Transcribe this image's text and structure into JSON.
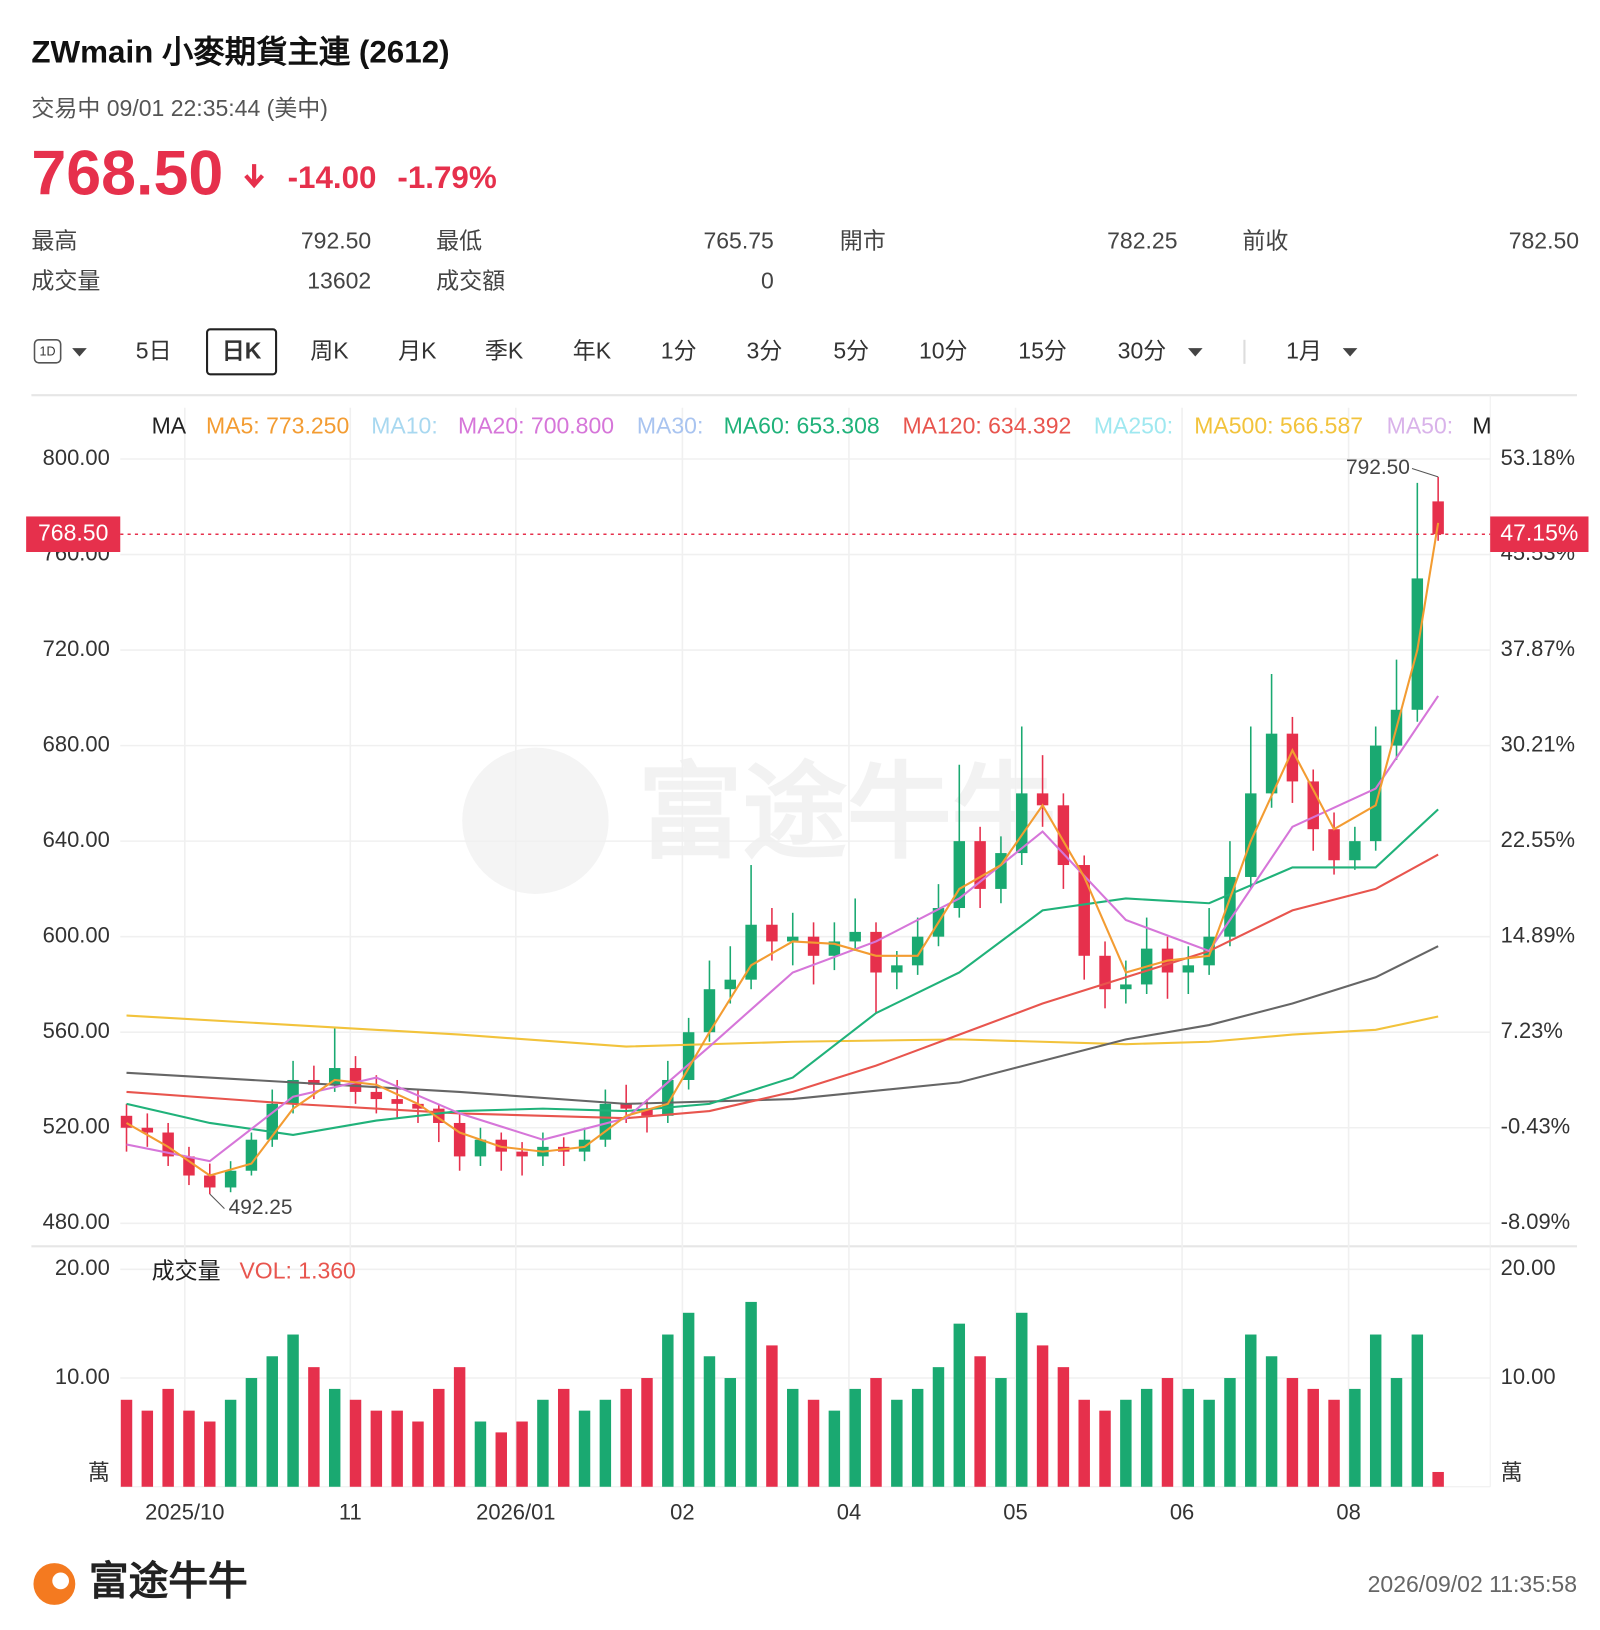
{
  "header": {
    "title": "ZWmain  小麥期貨主連 (2612)",
    "status": "交易中 09/01 22:35:44 (美中)",
    "price": "768.50",
    "change": "-14.00",
    "change_pct": "-1.79%"
  },
  "stats": [
    [
      {
        "label": "最高",
        "value": "792.50",
        "color": "#1aa971"
      },
      {
        "label": "最低",
        "value": "765.75",
        "color": "#e6304c"
      },
      {
        "label": "開市",
        "value": "782.25",
        "color": "#e6304c"
      },
      {
        "label": "前收",
        "value": "782.50",
        "color": "#555"
      }
    ],
    [
      {
        "label": "成交量",
        "value": "13602",
        "color": "#222"
      },
      {
        "label": "成交額",
        "value": "0",
        "color": "#222"
      }
    ]
  ],
  "tabs": [
    "5日",
    "日K",
    "周K",
    "月K",
    "季K",
    "年K",
    "1分",
    "3分",
    "5分",
    "10分",
    "15分",
    "30分",
    "1月"
  ],
  "tab_icon": "1D",
  "selected_tab": "日K",
  "chart_data": {
    "type": "candlestick",
    "legend": [
      {
        "label": "MA",
        "color": "#222"
      },
      {
        "label": "MA5: 773.250",
        "color": "#f39c32"
      },
      {
        "label": "MA10:",
        "color": "#a8d8f0"
      },
      {
        "label": "MA20: 700.800",
        "color": "#d676d9"
      },
      {
        "label": "MA30:",
        "color": "#a9c4f0"
      },
      {
        "label": "MA60: 653.308",
        "color": "#20b27a"
      },
      {
        "label": "MA120: 634.392",
        "color": "#e8554e"
      },
      {
        "label": "MA250:",
        "color": "#9fe8f0"
      },
      {
        "label": "MA500: 566.587",
        "color": "#f2c33c"
      },
      {
        "label": "MA50:",
        "color": "#d9b3ea"
      },
      {
        "label": "M",
        "color": "#222"
      }
    ],
    "up_color": "#1aa971",
    "down_color": "#e6304c",
    "candles": {
      "x": [
        0,
        1,
        2,
        3,
        4,
        5,
        6,
        7,
        8,
        9,
        10,
        11,
        12,
        13,
        14,
        15,
        16,
        17,
        18,
        19,
        20,
        21,
        22,
        23,
        24,
        25,
        26,
        27,
        28,
        29,
        30,
        31,
        32,
        33,
        34,
        35,
        36,
        37,
        38,
        39,
        40,
        41,
        42,
        43,
        44,
        45,
        46,
        47,
        48,
        49,
        50,
        51,
        52,
        53,
        54,
        55,
        56,
        57,
        58,
        59,
        60,
        61,
        62,
        63
      ],
      "ohlc": [
        [
          525,
          530,
          510,
          520
        ],
        [
          520,
          526,
          512,
          518
        ],
        [
          518,
          522,
          504,
          508
        ],
        [
          508,
          512,
          496,
          500
        ],
        [
          500,
          505,
          492.25,
          495
        ],
        [
          495,
          506,
          493,
          502
        ],
        [
          502,
          518,
          500,
          515
        ],
        [
          515,
          536,
          512,
          530
        ],
        [
          530,
          548,
          526,
          540
        ],
        [
          540,
          546,
          532,
          538
        ],
        [
          538,
          562,
          535,
          545
        ],
        [
          545,
          550,
          530,
          535
        ],
        [
          535,
          542,
          526,
          532
        ],
        [
          532,
          540,
          524,
          530
        ],
        [
          530,
          536,
          522,
          528
        ],
        [
          528,
          530,
          514,
          522
        ],
        [
          522,
          526,
          502,
          508
        ],
        [
          508,
          520,
          504,
          515
        ],
        [
          515,
          518,
          502,
          510
        ],
        [
          510,
          514,
          500,
          508
        ],
        [
          508,
          518,
          504,
          512
        ],
        [
          512,
          516,
          504,
          510
        ],
        [
          510,
          520,
          506,
          515
        ],
        [
          515,
          536,
          512,
          530
        ],
        [
          530,
          538,
          522,
          528
        ],
        [
          528,
          532,
          518,
          525
        ],
        [
          525,
          548,
          522,
          540
        ],
        [
          540,
          566,
          536,
          560
        ],
        [
          560,
          590,
          556,
          578
        ],
        [
          578,
          596,
          572,
          582
        ],
        [
          582,
          630,
          578,
          605
        ],
        [
          605,
          612,
          590,
          598
        ],
        [
          598,
          610,
          588,
          600
        ],
        [
          600,
          606,
          580,
          592
        ],
        [
          592,
          606,
          586,
          598
        ],
        [
          598,
          616,
          594,
          602
        ],
        [
          602,
          606,
          568,
          585
        ],
        [
          585,
          594,
          578,
          588
        ],
        [
          588,
          608,
          584,
          600
        ],
        [
          600,
          622,
          596,
          612
        ],
        [
          612,
          672,
          608,
          640
        ],
        [
          640,
          646,
          612,
          620
        ],
        [
          620,
          642,
          614,
          635
        ],
        [
          635,
          688,
          630,
          660
        ],
        [
          660,
          676,
          646,
          655
        ],
        [
          655,
          660,
          620,
          630
        ],
        [
          630,
          634,
          582,
          592
        ],
        [
          592,
          598,
          570,
          578
        ],
        [
          578,
          590,
          572,
          580
        ],
        [
          580,
          608,
          576,
          595
        ],
        [
          595,
          600,
          574,
          585
        ],
        [
          585,
          596,
          576,
          588
        ],
        [
          588,
          612,
          584,
          600
        ],
        [
          600,
          640,
          596,
          625
        ],
        [
          625,
          688,
          620,
          660
        ],
        [
          660,
          710,
          654,
          685
        ],
        [
          685,
          692,
          656,
          665
        ],
        [
          665,
          670,
          636,
          645
        ],
        [
          645,
          652,
          626,
          632
        ],
        [
          632,
          646,
          628,
          640
        ],
        [
          640,
          688,
          636,
          680
        ],
        [
          680,
          716,
          674,
          695
        ],
        [
          695,
          790,
          690,
          750
        ],
        [
          782.25,
          792.5,
          765.75,
          768.5
        ]
      ],
      "volume": [
        8,
        7,
        9,
        7,
        6,
        8,
        10,
        12,
        14,
        11,
        9,
        8,
        7,
        7,
        6,
        9,
        11,
        6,
        5,
        6,
        8,
        9,
        7,
        8,
        9,
        10,
        14,
        16,
        12,
        10,
        17,
        13,
        9,
        8,
        7,
        9,
        10,
        8,
        9,
        11,
        15,
        12,
        10,
        16,
        13,
        11,
        8,
        7,
        8,
        9,
        10,
        9,
        8,
        10,
        14,
        12,
        10,
        9,
        8,
        9,
        14,
        10,
        14,
        1.36
      ]
    },
    "lines": [
      {
        "color": "#f2c33c",
        "x": [
          0,
          8,
          16,
          24,
          32,
          40,
          48,
          52,
          56,
          60,
          63
        ],
        "values": [
          567,
          563,
          559,
          554,
          556,
          557,
          555,
          556,
          559,
          561,
          566.587
        ]
      },
      {
        "color": "#666",
        "x": [
          0,
          8,
          16,
          24,
          32,
          40,
          44,
          48,
          52,
          56,
          60,
          63
        ],
        "values": [
          543,
          539,
          535,
          530,
          532,
          539,
          548,
          557,
          563,
          572,
          583,
          596
        ]
      },
      {
        "color": "#e8554e",
        "x": [
          0,
          8,
          16,
          24,
          28,
          32,
          36,
          40,
          44,
          48,
          52,
          56,
          60,
          63
        ],
        "values": [
          535,
          530,
          526,
          524,
          527,
          535,
          546,
          559,
          572,
          583,
          594,
          611,
          620,
          634.392
        ]
      },
      {
        "color": "#20b27a",
        "x": [
          0,
          4,
          8,
          12,
          16,
          20,
          24,
          28,
          32,
          36,
          40,
          44,
          48,
          52,
          56,
          60,
          63
        ],
        "values": [
          530,
          522,
          517,
          523,
          527,
          528,
          527,
          530,
          541,
          568,
          585,
          611,
          616,
          614,
          629,
          629,
          653.308
        ]
      },
      {
        "color": "#d676d9",
        "x": [
          0,
          4,
          8,
          12,
          16,
          20,
          24,
          28,
          32,
          36,
          40,
          44,
          48,
          52,
          56,
          60,
          63
        ],
        "values": [
          513,
          506,
          533,
          541,
          526,
          515,
          524,
          554,
          585,
          598,
          616,
          644,
          607,
          594,
          646,
          662,
          700.8
        ]
      },
      {
        "color": "#f39c32",
        "x": [
          0,
          2,
          4,
          6,
          8,
          10,
          12,
          14,
          16,
          18,
          20,
          22,
          24,
          26,
          28,
          30,
          32,
          34,
          36,
          38,
          40,
          42,
          44,
          46,
          48,
          50,
          52,
          54,
          56,
          58,
          60,
          62,
          63
        ],
        "values": [
          522,
          512,
          500,
          505,
          528,
          540,
          538,
          530,
          518,
          512,
          510,
          512,
          525,
          530,
          560,
          588,
          598,
          597,
          592,
          592,
          620,
          630,
          655,
          625,
          585,
          590,
          592,
          640,
          678,
          645,
          655,
          720,
          773.25
        ]
      }
    ],
    "xlim": [
      -0.3,
      65.5
    ],
    "xticks": [
      {
        "value": 2.8,
        "label": "2025/10"
      },
      {
        "value": 10.75,
        "label": "11"
      },
      {
        "value": 18.7,
        "label": "2026/01"
      },
      {
        "value": 26.7,
        "label": "02"
      },
      {
        "value": 34.7,
        "label": "04"
      },
      {
        "value": 42.7,
        "label": "05"
      },
      {
        "value": 50.7,
        "label": "06"
      },
      {
        "value": 58.7,
        "label": "08"
      }
    ],
    "ylim": [
      480,
      800
    ],
    "yticks": [
      {
        "value": 800,
        "label": "800.00"
      },
      {
        "value": 760,
        "label": "760.00"
      },
      {
        "value": 720,
        "label": "720.00"
      },
      {
        "value": 680,
        "label": "680.00"
      },
      {
        "value": 640,
        "label": "640.00"
      },
      {
        "value": 600,
        "label": "600.00"
      },
      {
        "value": 560,
        "label": "560.00"
      },
      {
        "value": 520,
        "label": "520.00"
      },
      {
        "value": 480,
        "label": "480.00"
      }
    ],
    "y2lim": [
      -8.09,
      53.18
    ],
    "y2ticks": [
      {
        "value": 53.18,
        "label": "53.18%"
      },
      {
        "value": 45.53,
        "label": "45.53%"
      },
      {
        "value": 37.87,
        "label": "37.87%"
      },
      {
        "value": 30.21,
        "label": "30.21%"
      },
      {
        "value": 22.55,
        "label": "22.55%"
      },
      {
        "value": 14.89,
        "label": "14.89%"
      },
      {
        "value": 7.23,
        "label": "7.23%"
      },
      {
        "value": -0.43,
        "label": "-0.43%"
      },
      {
        "value": -8.09,
        "label": "-8.09%"
      }
    ],
    "price_line": {
      "value": 768.5,
      "label": "768.50",
      "pct": {
        "value": 47.15,
        "label": "47.15%"
      }
    },
    "annotations": [
      {
        "value": 792.5,
        "label": "792.50",
        "x": 63
      },
      {
        "value": 492.25,
        "label": "492.25",
        "x": 4
      }
    ],
    "volume_panel": {
      "title": "成交量",
      "vol_label": "VOL: 1.360",
      "unit": "萬",
      "ylim": [
        0,
        20
      ],
      "yticks": [
        {
          "value": 20,
          "label": "20.00"
        },
        {
          "value": 10,
          "label": "10.00"
        }
      ]
    },
    "grid": true
  },
  "watermark": "富途牛牛",
  "footer": {
    "brand": "富途牛牛",
    "timestamp": "2026/09/02 11:35:58"
  }
}
